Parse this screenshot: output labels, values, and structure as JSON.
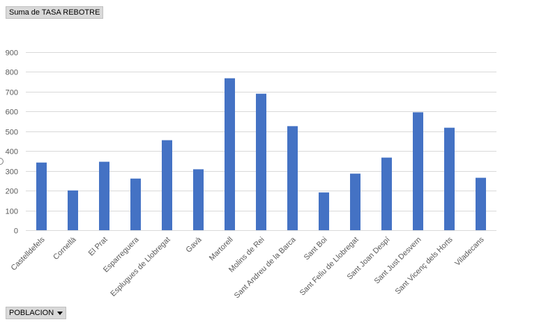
{
  "pivot": {
    "value_field_label": "Suma de TASA REBOTRE",
    "axis_field_label": "POBLACION"
  },
  "colors": {
    "bar": "#4472c4",
    "grid": "#d9d9d9",
    "axis_text": "#595959"
  },
  "chart_data": {
    "type": "bar",
    "categories": [
      "Castelldefels",
      "Cornellà",
      "El Prat",
      "Esparreguera",
      "Esplugues de Llobregat",
      "Gavà",
      "Martorell",
      "Molins de Rei",
      "Sant Andreu de la Barca",
      "Sant Boi",
      "Sant Feliu de Llobregat",
      "Sant Joan Despí",
      "Sant Just Desvern",
      "Sant Vicenç dels Horts",
      "Viladecans"
    ],
    "series": [
      {
        "values": [
          342,
          201,
          346,
          261,
          455,
          308,
          768,
          690,
          526,
          191,
          286,
          367,
          596,
          518,
          265
        ]
      }
    ],
    "ylim": [
      0,
      900
    ],
    "yticks": [
      0,
      100,
      200,
      300,
      400,
      500,
      600,
      700,
      800,
      900
    ],
    "grid": true,
    "legend": "none"
  }
}
